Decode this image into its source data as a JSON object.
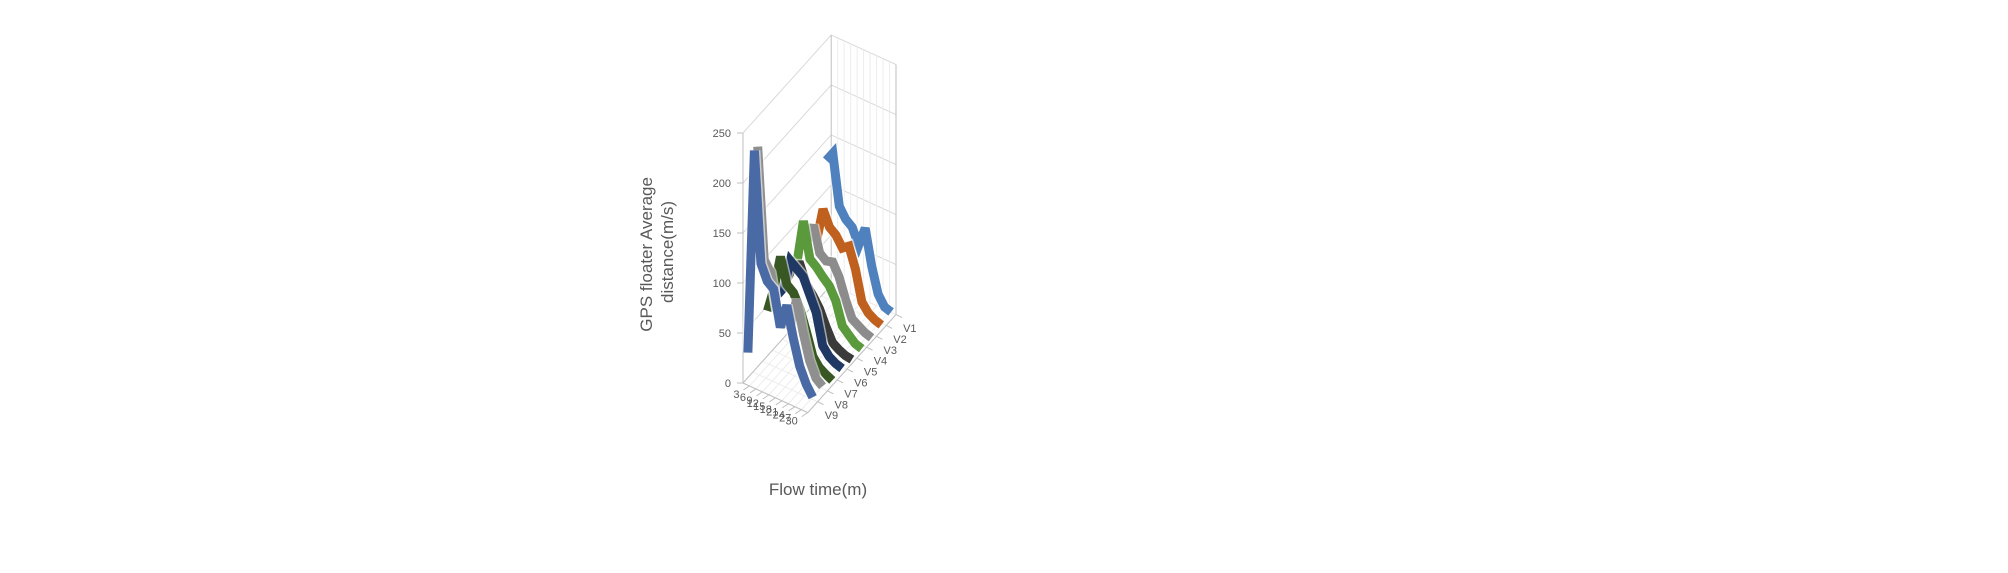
{
  "chart_data": {
    "type": "line",
    "subtype": "3d-line",
    "title": "",
    "ylabel_lines": [
      "GPS floater Average",
      "distance(m/s)"
    ],
    "xlabel": "Flow time(m)",
    "zlabel": "",
    "ylim": [
      0,
      250
    ],
    "ytick_labels": [
      "0",
      "50",
      "100",
      "150",
      "200",
      "250"
    ],
    "xtick_labels": [
      "3",
      "6",
      "9",
      "12",
      "15",
      "18",
      "21",
      "24",
      "27",
      "30"
    ],
    "series_tick_labels": [
      "V1",
      "V2",
      "V3",
      "V4",
      "V5",
      "V6",
      "V7",
      "V8",
      "V9"
    ],
    "grid": true,
    "legend": "none",
    "categories": [
      0,
      3,
      6,
      9,
      12,
      15,
      18,
      21,
      24,
      27,
      30
    ],
    "series": [
      {
        "name": "V1",
        "color": "#4e81bd",
        "values": [
          130,
          140,
          90,
          80,
          75,
          60,
          80,
          45,
          20,
          10,
          8
        ]
      },
      {
        "name": "V2",
        "color": "#c0601e",
        "values": [
          60,
          95,
          80,
          75,
          65,
          70,
          50,
          20,
          12,
          8,
          6
        ]
      },
      {
        "name": "V3",
        "color": "#8c8c8c",
        "values": [
          70,
          90,
          65,
          60,
          62,
          50,
          30,
          14,
          10,
          6,
          4
        ]
      },
      {
        "name": "V4",
        "color": "#5b9a3c",
        "values": [
          60,
          105,
          70,
          65,
          58,
          52,
          40,
          18,
          12,
          6,
          4
        ]
      },
      {
        "name": "V5",
        "color": "#3a3a3a",
        "values": [
          55,
          72,
          75,
          58,
          50,
          40,
          25,
          12,
          8,
          5,
          4
        ]
      },
      {
        "name": "V6",
        "color": "#1f3864",
        "values": [
          50,
          60,
          90,
          85,
          80,
          65,
          50,
          20,
          12,
          8,
          6
        ]
      },
      {
        "name": "V7",
        "color": "#385723",
        "values": [
          45,
          70,
          105,
          80,
          75,
          62,
          42,
          20,
          12,
          8,
          5
        ]
      },
      {
        "name": "V8",
        "color": "#8f8f8f",
        "values": [
          220,
          110,
          100,
          65,
          62,
          55,
          85,
          55,
          30,
          15,
          10
        ]
      },
      {
        "name": "V9",
        "color": "#4a6aa5",
        "values": [
          25,
          230,
          120,
          105,
          100,
          65,
          90,
          60,
          35,
          20,
          10
        ]
      }
    ]
  }
}
